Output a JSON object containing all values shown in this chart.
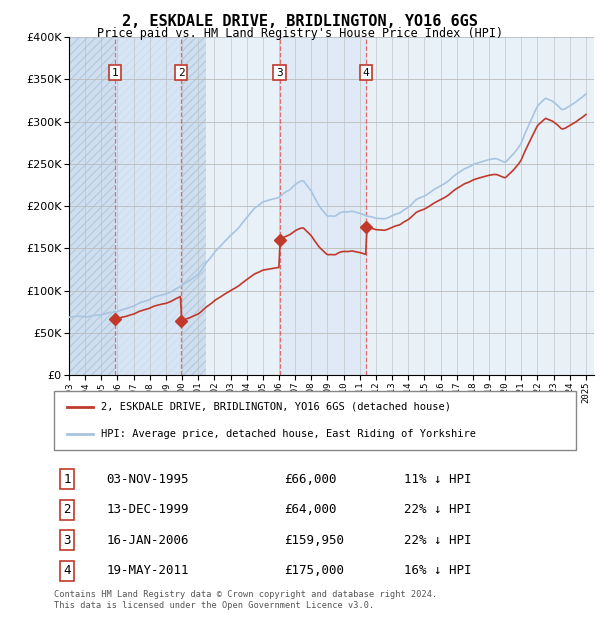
{
  "title": "2, ESKDALE DRIVE, BRIDLINGTON, YO16 6GS",
  "subtitle": "Price paid vs. HM Land Registry's House Price Index (HPI)",
  "ylim": [
    0,
    400000
  ],
  "yticks": [
    0,
    50000,
    100000,
    150000,
    200000,
    250000,
    300000,
    350000,
    400000
  ],
  "ytick_labels": [
    "£0",
    "£50K",
    "£100K",
    "£150K",
    "£200K",
    "£250K",
    "£300K",
    "£350K",
    "£400K"
  ],
  "sale_label_dates": [
    1995.84,
    1999.95,
    2006.04,
    2011.37
  ],
  "sale_prices": [
    66000,
    64000,
    159950,
    175000
  ],
  "sale_labels": [
    "1",
    "2",
    "3",
    "4"
  ],
  "sale_info": [
    {
      "num": "1",
      "date": "03-NOV-1995",
      "price": "£66,000",
      "hpi": "11% ↓ HPI"
    },
    {
      "num": "2",
      "date": "13-DEC-1999",
      "price": "£64,000",
      "hpi": "22% ↓ HPI"
    },
    {
      "num": "3",
      "date": "16-JAN-2006",
      "price": "£159,950",
      "hpi": "22% ↓ HPI"
    },
    {
      "num": "4",
      "date": "19-MAY-2011",
      "price": "£175,000",
      "hpi": "16% ↓ HPI"
    }
  ],
  "legend_line1": "2, ESKDALE DRIVE, BRIDLINGTON, YO16 6GS (detached house)",
  "legend_line2": "HPI: Average price, detached house, East Riding of Yorkshire",
  "footer1": "Contains HM Land Registry data © Crown copyright and database right 2024.",
  "footer2": "This data is licensed under the Open Government Licence v3.0.",
  "hpi_color": "#a8c4e0",
  "price_color": "#c0392b",
  "vline_color": "#e05050",
  "label_box_color": "#c0392b",
  "grid_color": "#cccccc",
  "bg_hatch_color": "#dce8f5",
  "bg_plain_color": "#e8f0f8"
}
